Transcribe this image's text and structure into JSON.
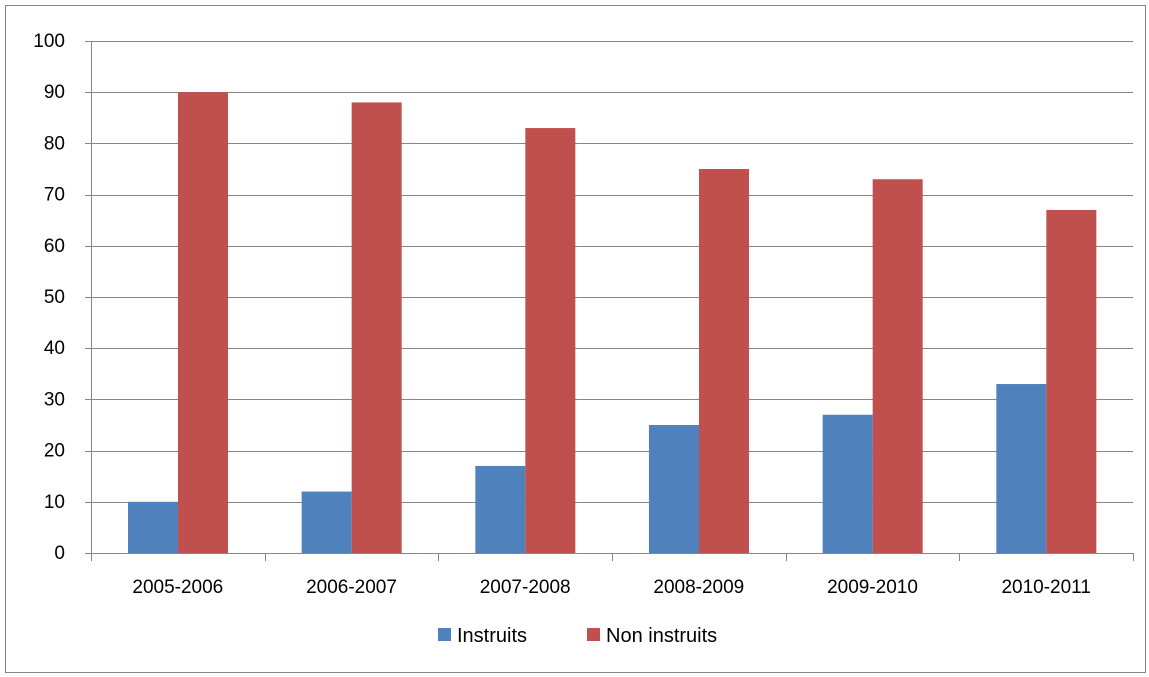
{
  "chart_data": {
    "type": "bar",
    "title": "",
    "xlabel": "",
    "ylabel": "",
    "categories": [
      "2005-2006",
      "2006-2007",
      "2007-2008",
      "2008-2009",
      "2009-2010",
      "2010-2011"
    ],
    "series": [
      {
        "name": "Instruits",
        "color": "#4F81BD",
        "values": [
          10,
          12,
          17,
          25,
          27,
          33
        ]
      },
      {
        "name": "Non instruits",
        "color": "#C0504D",
        "values": [
          90,
          88,
          83,
          75,
          73,
          67
        ]
      }
    ],
    "ylim": [
      0,
      100
    ],
    "yticks": [
      "0",
      "10",
      "20",
      "30",
      "40",
      "50",
      "60",
      "70",
      "80",
      "90",
      "100"
    ],
    "grid": true,
    "legend_position": "bottom",
    "colors": {
      "grid": "#868686",
      "frame": "#868686"
    }
  }
}
